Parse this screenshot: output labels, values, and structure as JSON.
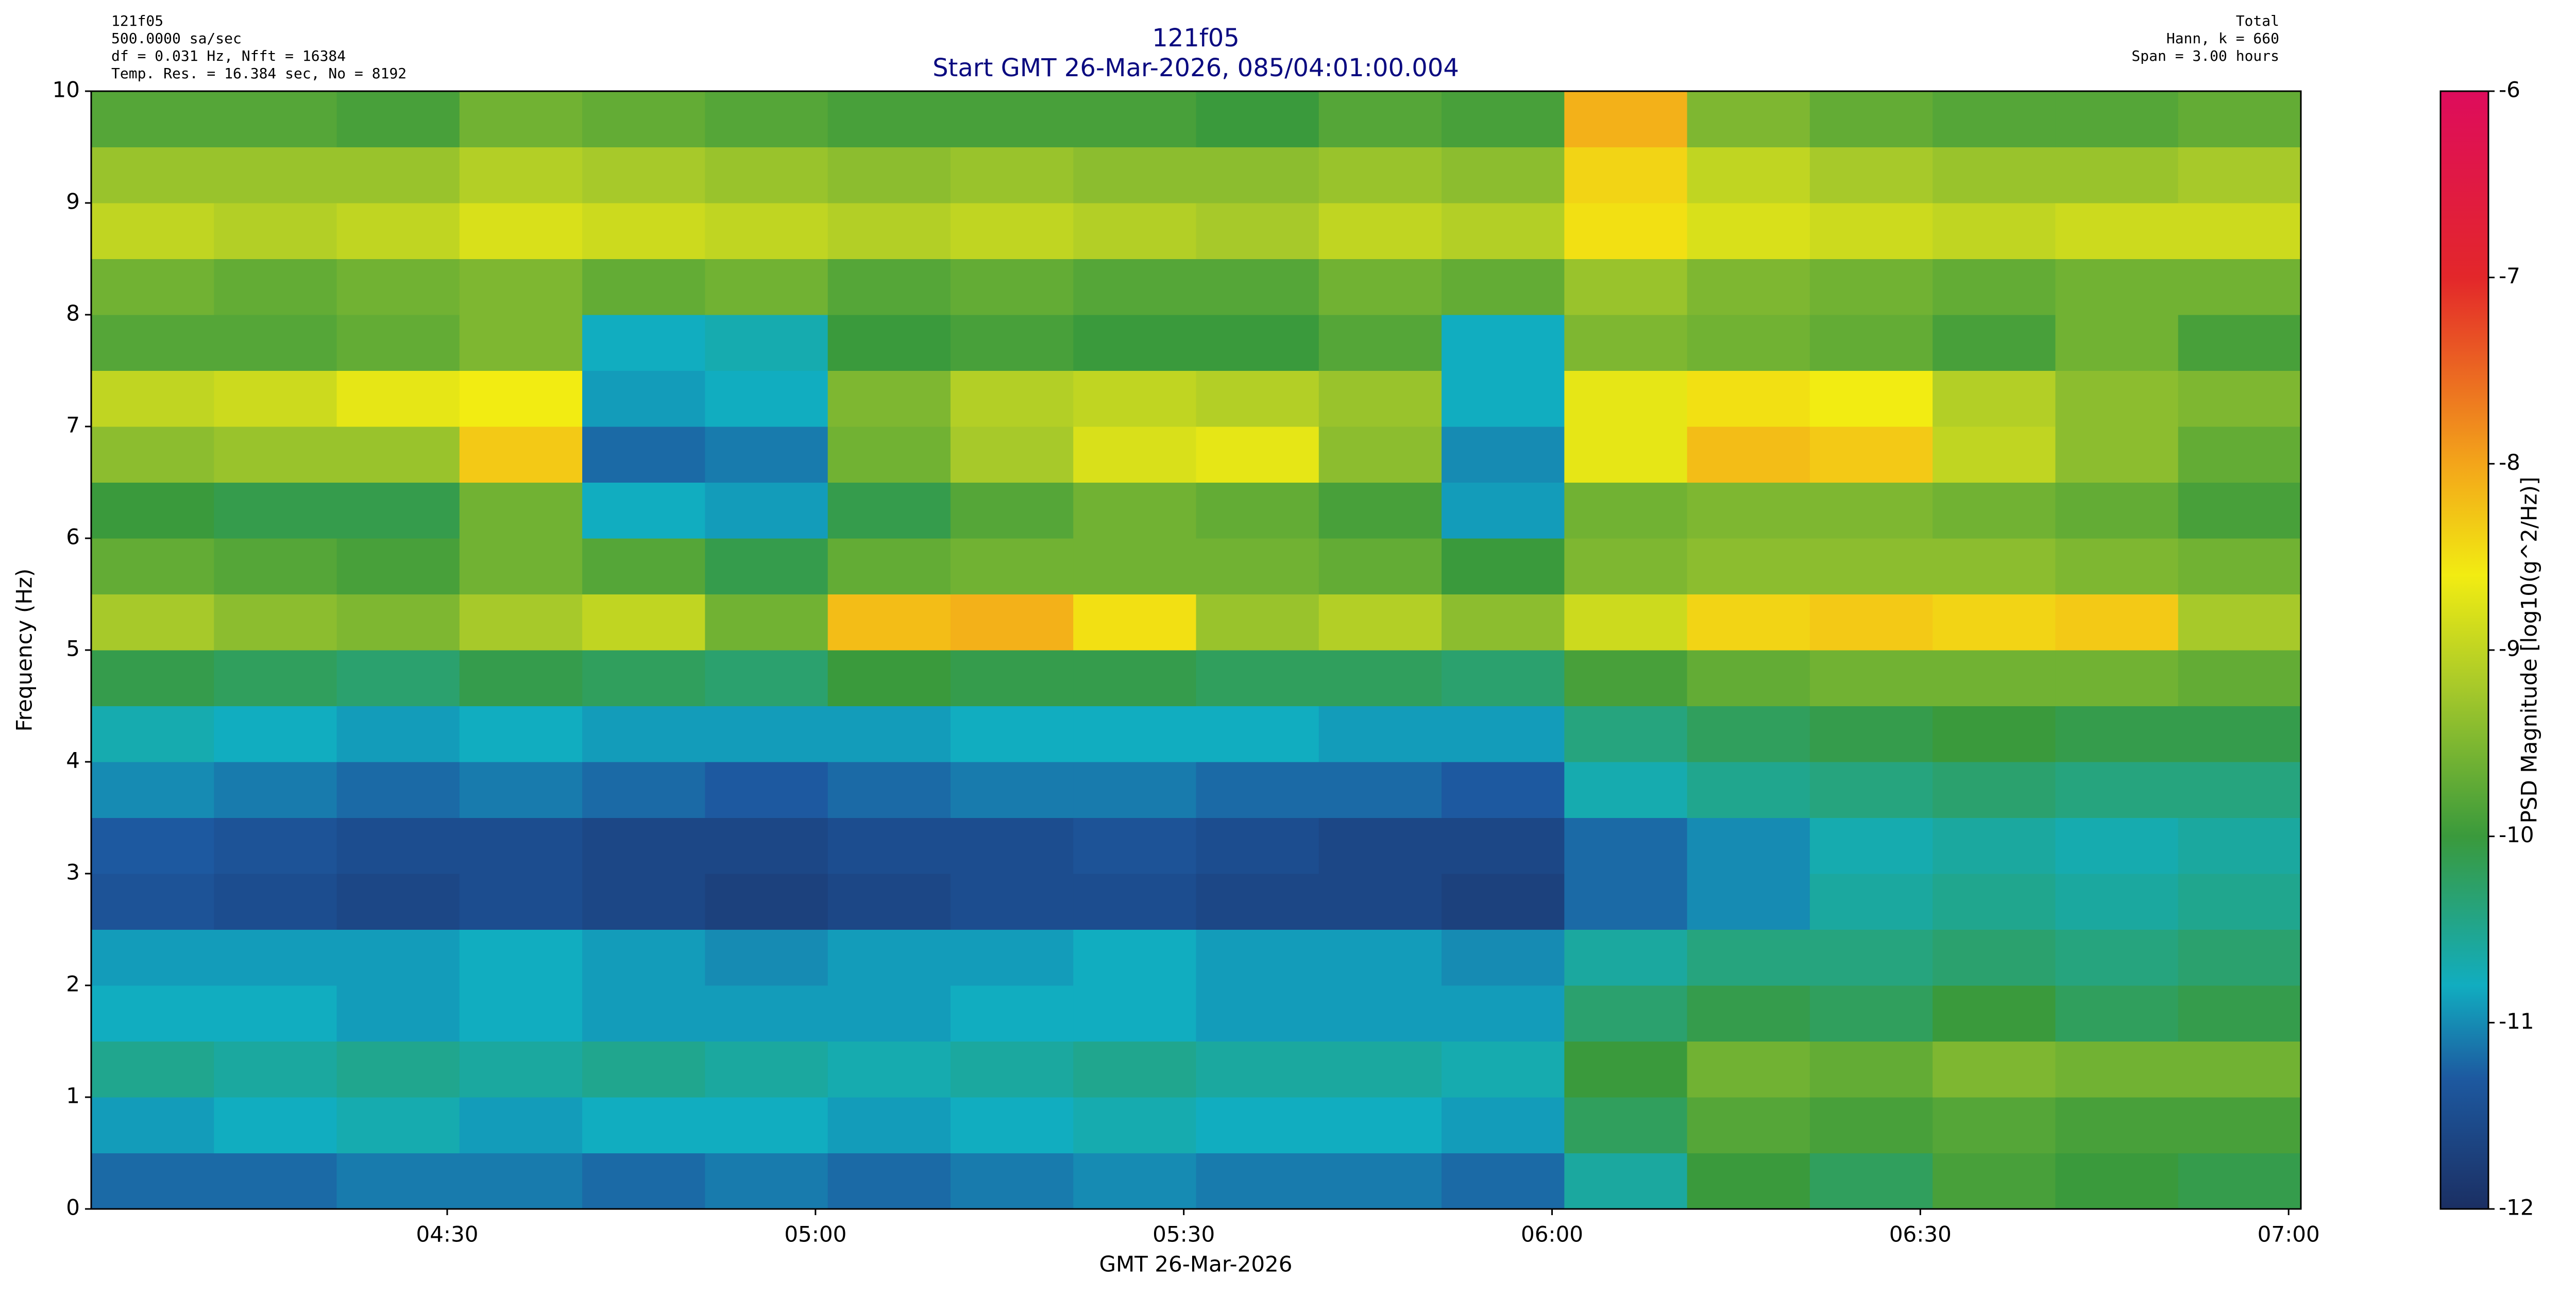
{
  "chart_data": {
    "type": "heatmap",
    "title": "121f05",
    "subtitle": "Start GMT 26-Mar-2026, 085/04:01:00.004",
    "notes_left": [
      "121f05",
      "500.0000 sa/sec",
      "df = 0.031 Hz,  Nfft = 16384",
      "Temp. Res. = 16.384 sec, No = 8192"
    ],
    "notes_right": [
      "Total",
      "Hann, k = 660",
      "Span = 3.00 hours"
    ],
    "xlabel": "GMT 26-Mar-2026",
    "ylabel": "Frequency (Hz)",
    "colorbar_label": "PSD Magnitude [log10(g^2/Hz)]",
    "xlim": [
      "04:01",
      "07:01"
    ],
    "xticks": [
      "04:30",
      "05:00",
      "05:30",
      "06:00",
      "06:30",
      "07:00"
    ],
    "ylim": [
      0,
      10
    ],
    "yticks": [
      0,
      1,
      2,
      3,
      4,
      5,
      6,
      7,
      8,
      9,
      10
    ],
    "clim": [
      -12,
      -6
    ],
    "cticks": [
      -12,
      -11,
      -10,
      -9,
      -8,
      -7,
      -6
    ],
    "colormap": [
      {
        "value": -12,
        "color": "#1b2f63"
      },
      {
        "value": -11.3,
        "color": "#1d59a0"
      },
      {
        "value": -10.8,
        "color": "#11adc0"
      },
      {
        "value": -10,
        "color": "#3a9a3c"
      },
      {
        "value": -9.2,
        "color": "#a7c92a"
      },
      {
        "value": -8.6,
        "color": "#f2ec12"
      },
      {
        "value": -8,
        "color": "#f3a51a"
      },
      {
        "value": -7,
        "color": "#e3272a"
      },
      {
        "value": -6,
        "color": "#de0c5c"
      }
    ],
    "x": [
      "04:01",
      "04:11",
      "04:21",
      "04:31",
      "04:41",
      "04:51",
      "05:01",
      "05:11",
      "05:21",
      "05:31",
      "05:41",
      "05:51",
      "06:01",
      "06:11",
      "06:21",
      "06:31",
      "06:41",
      "06:51",
      "07:01"
    ],
    "y": [
      0,
      0.5,
      1,
      1.5,
      2,
      2.5,
      3,
      3.5,
      4,
      4.5,
      5,
      5.5,
      6,
      6.5,
      7,
      7.5,
      8,
      8.5,
      9,
      9.5,
      10
    ],
    "values": [
      [
        -11.2,
        -11.2,
        -11.1,
        -11.1,
        -11.2,
        -11.1,
        -11.2,
        -11.1,
        -11.0,
        -11.1,
        -11.1,
        -11.2,
        -10.6,
        -10.0,
        -10.2,
        -9.9,
        -10.0,
        -10.1
      ],
      [
        -10.9,
        -10.8,
        -10.7,
        -10.9,
        -10.8,
        -10.8,
        -10.9,
        -10.8,
        -10.7,
        -10.8,
        -10.8,
        -10.9,
        -10.2,
        -9.8,
        -9.9,
        -9.8,
        -9.9,
        -9.9
      ],
      [
        -10.5,
        -10.6,
        -10.5,
        -10.6,
        -10.5,
        -10.6,
        -10.7,
        -10.6,
        -10.5,
        -10.6,
        -10.6,
        -10.7,
        -10.0,
        -9.6,
        -9.7,
        -9.5,
        -9.6,
        -9.6
      ],
      [
        -10.8,
        -10.8,
        -10.9,
        -10.8,
        -10.9,
        -10.9,
        -10.9,
        -10.8,
        -10.8,
        -10.9,
        -10.9,
        -10.9,
        -10.3,
        -10.1,
        -10.2,
        -10.0,
        -10.2,
        -10.1
      ],
      [
        -10.9,
        -10.9,
        -10.9,
        -10.8,
        -10.9,
        -11.0,
        -10.9,
        -10.9,
        -10.8,
        -10.9,
        -10.9,
        -11.0,
        -10.6,
        -10.4,
        -10.4,
        -10.3,
        -10.4,
        -10.3
      ],
      [
        -11.4,
        -11.5,
        -11.6,
        -11.5,
        -11.6,
        -11.7,
        -11.6,
        -11.5,
        -11.5,
        -11.6,
        -11.6,
        -11.7,
        -11.2,
        -11.0,
        -10.6,
        -10.5,
        -10.6,
        -10.5
      ],
      [
        -11.3,
        -11.4,
        -11.5,
        -11.5,
        -11.6,
        -11.6,
        -11.5,
        -11.5,
        -11.4,
        -11.5,
        -11.6,
        -11.6,
        -11.2,
        -11.0,
        -10.7,
        -10.6,
        -10.7,
        -10.6
      ],
      [
        -11.0,
        -11.1,
        -11.2,
        -11.1,
        -11.2,
        -11.3,
        -11.2,
        -11.1,
        -11.1,
        -11.2,
        -11.2,
        -11.3,
        -10.7,
        -10.5,
        -10.4,
        -10.3,
        -10.4,
        -10.4
      ],
      [
        -10.7,
        -10.8,
        -10.9,
        -10.8,
        -10.9,
        -10.9,
        -10.9,
        -10.8,
        -10.8,
        -10.8,
        -10.9,
        -10.9,
        -10.4,
        -10.2,
        -10.1,
        -10.0,
        -10.1,
        -10.1
      ],
      [
        -10.1,
        -10.2,
        -10.3,
        -10.1,
        -10.2,
        -10.3,
        -10.0,
        -10.1,
        -10.1,
        -10.2,
        -10.2,
        -10.3,
        -9.9,
        -9.7,
        -9.6,
        -9.6,
        -9.6,
        -9.7
      ],
      [
        -9.2,
        -9.4,
        -9.5,
        -9.2,
        -9.0,
        -9.6,
        -8.2,
        -8.1,
        -8.5,
        -9.3,
        -9.1,
        -9.4,
        -8.9,
        -8.4,
        -8.3,
        -8.4,
        -8.3,
        -9.2
      ],
      [
        -9.7,
        -9.8,
        -9.9,
        -9.6,
        -9.8,
        -10.1,
        -9.7,
        -9.6,
        -9.6,
        -9.6,
        -9.7,
        -10.0,
        -9.5,
        -9.4,
        -9.4,
        -9.4,
        -9.5,
        -9.6
      ],
      [
        -10.0,
        -10.1,
        -10.1,
        -9.6,
        -10.8,
        -10.9,
        -10.1,
        -9.8,
        -9.6,
        -9.7,
        -9.9,
        -10.9,
        -9.6,
        -9.5,
        -9.5,
        -9.6,
        -9.7,
        -9.9
      ],
      [
        -9.4,
        -9.3,
        -9.3,
        -8.3,
        -11.2,
        -11.1,
        -9.6,
        -9.2,
        -8.8,
        -8.7,
        -9.4,
        -11.0,
        -8.7,
        -8.2,
        -8.3,
        -9.0,
        -9.4,
        -9.7
      ],
      [
        -9.0,
        -8.9,
        -8.7,
        -8.6,
        -10.9,
        -10.8,
        -9.5,
        -9.1,
        -9.0,
        -9.1,
        -9.3,
        -10.8,
        -8.7,
        -8.5,
        -8.6,
        -9.1,
        -9.4,
        -9.5
      ],
      [
        -9.8,
        -9.8,
        -9.7,
        -9.5,
        -10.8,
        -10.7,
        -10.0,
        -9.9,
        -10.0,
        -10.0,
        -9.8,
        -10.8,
        -9.5,
        -9.6,
        -9.7,
        -9.9,
        -9.6,
        -9.9
      ],
      [
        -9.6,
        -9.7,
        -9.6,
        -9.5,
        -9.7,
        -9.6,
        -9.8,
        -9.7,
        -9.8,
        -9.8,
        -9.6,
        -9.7,
        -9.3,
        -9.5,
        -9.6,
        -9.7,
        -9.6,
        -9.6
      ],
      [
        -9.0,
        -9.1,
        -9.0,
        -8.8,
        -8.9,
        -9.0,
        -9.1,
        -9.0,
        -9.1,
        -9.2,
        -9.0,
        -9.1,
        -8.5,
        -8.8,
        -8.9,
        -9.0,
        -8.9,
        -8.9
      ],
      [
        -9.3,
        -9.3,
        -9.3,
        -9.1,
        -9.2,
        -9.3,
        -9.4,
        -9.3,
        -9.4,
        -9.4,
        -9.3,
        -9.4,
        -8.4,
        -9.0,
        -9.2,
        -9.3,
        -9.3,
        -9.2
      ],
      [
        -9.8,
        -9.8,
        -9.9,
        -9.6,
        -9.7,
        -9.8,
        -9.9,
        -9.9,
        -9.9,
        -10.0,
        -9.8,
        -9.9,
        -8.1,
        -9.5,
        -9.7,
        -9.8,
        -9.8,
        -9.7
      ]
    ]
  }
}
